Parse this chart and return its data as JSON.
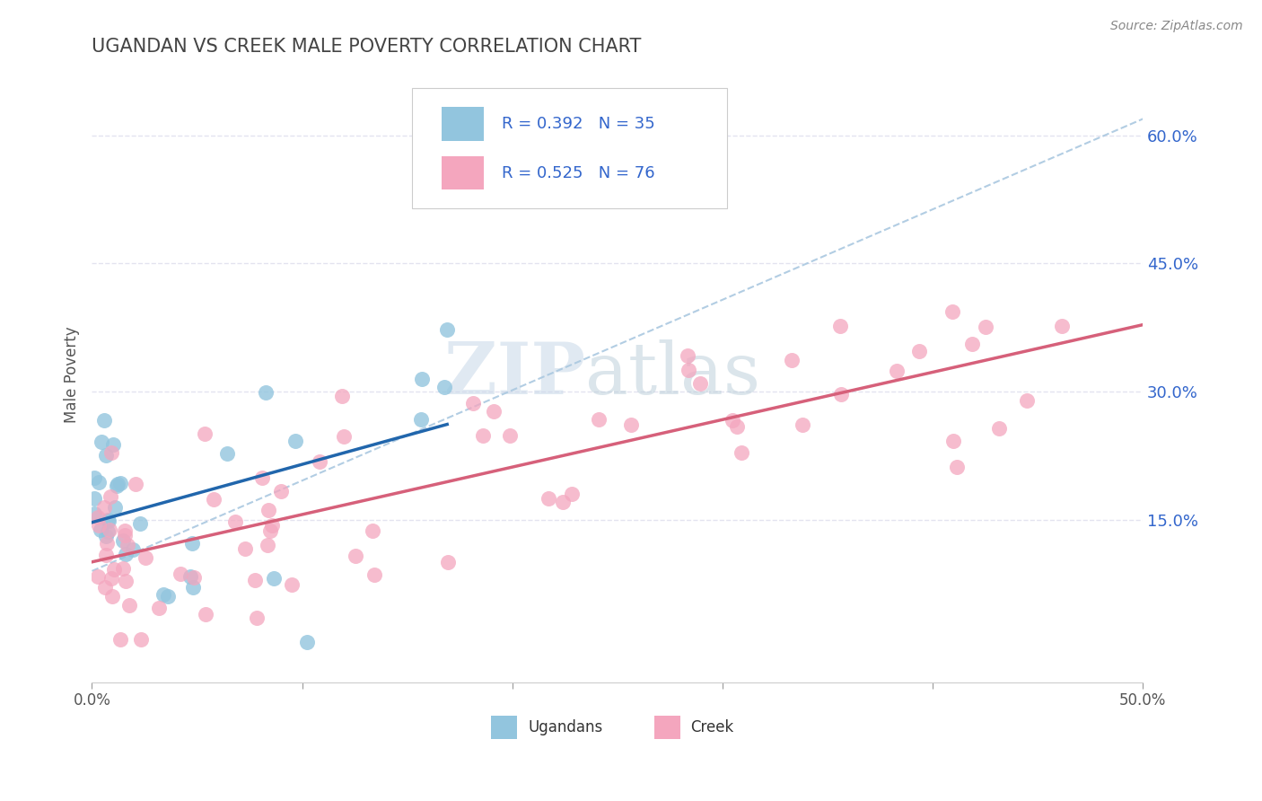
{
  "title": "UGANDAN VS CREEK MALE POVERTY CORRELATION CHART",
  "source": "Source: ZipAtlas.com",
  "ylabel": "Male Poverty",
  "xlim": [
    0.0,
    0.5
  ],
  "ylim": [
    -0.04,
    0.68
  ],
  "ytick_positions": [
    0.15,
    0.3,
    0.45,
    0.6
  ],
  "ytick_labels": [
    "15.0%",
    "30.0%",
    "45.0%",
    "60.0%"
  ],
  "ugandan_color": "#92c5de",
  "creek_color": "#f4a6be",
  "ugandan_R": 0.392,
  "ugandan_N": 35,
  "creek_R": 0.525,
  "creek_N": 76,
  "ugandan_line_color": "#2166ac",
  "creek_line_color": "#d6607a",
  "trend_line_color": "#aac8e0",
  "background_color": "#ffffff",
  "grid_color": "#e0e0ee",
  "title_color": "#444444",
  "axis_label_color": "#555555",
  "right_tick_color": "#3366cc",
  "legend_text_color": "#3366cc",
  "watermark_zip_color": "#c8d8e8",
  "watermark_atlas_color": "#b8ccd8"
}
